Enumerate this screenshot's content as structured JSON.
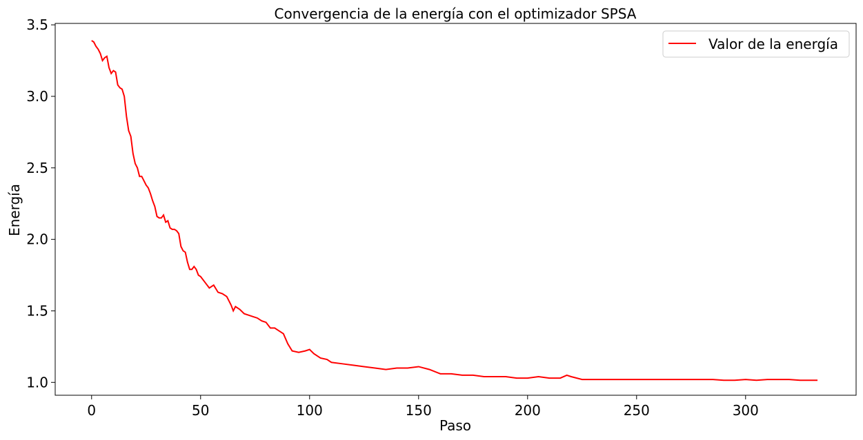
{
  "chart_data": {
    "type": "line",
    "title": "Convergencia de la energía con el optimizador SPSA",
    "xlabel": "Paso",
    "ylabel": "Energía",
    "xlim": [
      -16.7,
      350.7
    ],
    "ylim": [
      0.91,
      3.51
    ],
    "xticks": [
      0,
      50,
      100,
      150,
      200,
      250,
      300
    ],
    "yticks": [
      1.0,
      1.5,
      2.0,
      2.5,
      3.0,
      3.5
    ],
    "xtick_labels": [
      "0",
      "50",
      "100",
      "150",
      "200",
      "250",
      "300"
    ],
    "ytick_labels": [
      "1.0",
      "1.5",
      "2.0",
      "2.5",
      "3.0",
      "3.5"
    ],
    "grid": false,
    "legend_position": "top-right",
    "series": [
      {
        "name": "Valor de la energía",
        "color": "#ff0000",
        "x": [
          0,
          1,
          2,
          3,
          4,
          5,
          6,
          7,
          8,
          9,
          10,
          11,
          12,
          13,
          14,
          15,
          16,
          17,
          18,
          19,
          20,
          21,
          22,
          23,
          24,
          25,
          26,
          27,
          28,
          29,
          30,
          31,
          32,
          33,
          34,
          35,
          36,
          37,
          38,
          39,
          40,
          41,
          42,
          43,
          44,
          45,
          46,
          47,
          48,
          49,
          50,
          52,
          54,
          56,
          58,
          60,
          62,
          64,
          65,
          66,
          68,
          70,
          72,
          74,
          76,
          78,
          80,
          82,
          84,
          86,
          88,
          90,
          92,
          95,
          98,
          100,
          102,
          105,
          108,
          110,
          115,
          120,
          125,
          130,
          135,
          140,
          145,
          150,
          155,
          160,
          165,
          170,
          175,
          180,
          185,
          190,
          195,
          200,
          205,
          210,
          215,
          218,
          220,
          225,
          230,
          235,
          240,
          245,
          250,
          255,
          260,
          265,
          270,
          275,
          280,
          285,
          290,
          295,
          300,
          305,
          310,
          315,
          320,
          325,
          330,
          333
        ],
        "values": [
          3.39,
          3.38,
          3.35,
          3.33,
          3.3,
          3.25,
          3.27,
          3.28,
          3.2,
          3.16,
          3.18,
          3.17,
          3.08,
          3.06,
          3.05,
          3.0,
          2.86,
          2.76,
          2.72,
          2.6,
          2.53,
          2.5,
          2.44,
          2.44,
          2.41,
          2.38,
          2.36,
          2.32,
          2.27,
          2.23,
          2.16,
          2.15,
          2.15,
          2.17,
          2.12,
          2.13,
          2.08,
          2.07,
          2.07,
          2.06,
          2.04,
          1.95,
          1.92,
          1.91,
          1.84,
          1.79,
          1.79,
          1.81,
          1.79,
          1.75,
          1.74,
          1.7,
          1.66,
          1.68,
          1.63,
          1.62,
          1.6,
          1.54,
          1.5,
          1.53,
          1.51,
          1.48,
          1.47,
          1.46,
          1.45,
          1.43,
          1.42,
          1.38,
          1.38,
          1.36,
          1.34,
          1.27,
          1.22,
          1.21,
          1.22,
          1.23,
          1.2,
          1.17,
          1.16,
          1.14,
          1.13,
          1.12,
          1.11,
          1.1,
          1.09,
          1.1,
          1.1,
          1.11,
          1.09,
          1.06,
          1.06,
          1.05,
          1.05,
          1.04,
          1.04,
          1.04,
          1.03,
          1.03,
          1.04,
          1.03,
          1.03,
          1.05,
          1.04,
          1.02,
          1.02,
          1.02,
          1.02,
          1.02,
          1.02,
          1.02,
          1.02,
          1.02,
          1.02,
          1.02,
          1.02,
          1.02,
          1.015,
          1.015,
          1.02,
          1.015,
          1.02,
          1.02,
          1.02,
          1.015,
          1.015,
          1.015
        ]
      }
    ]
  }
}
